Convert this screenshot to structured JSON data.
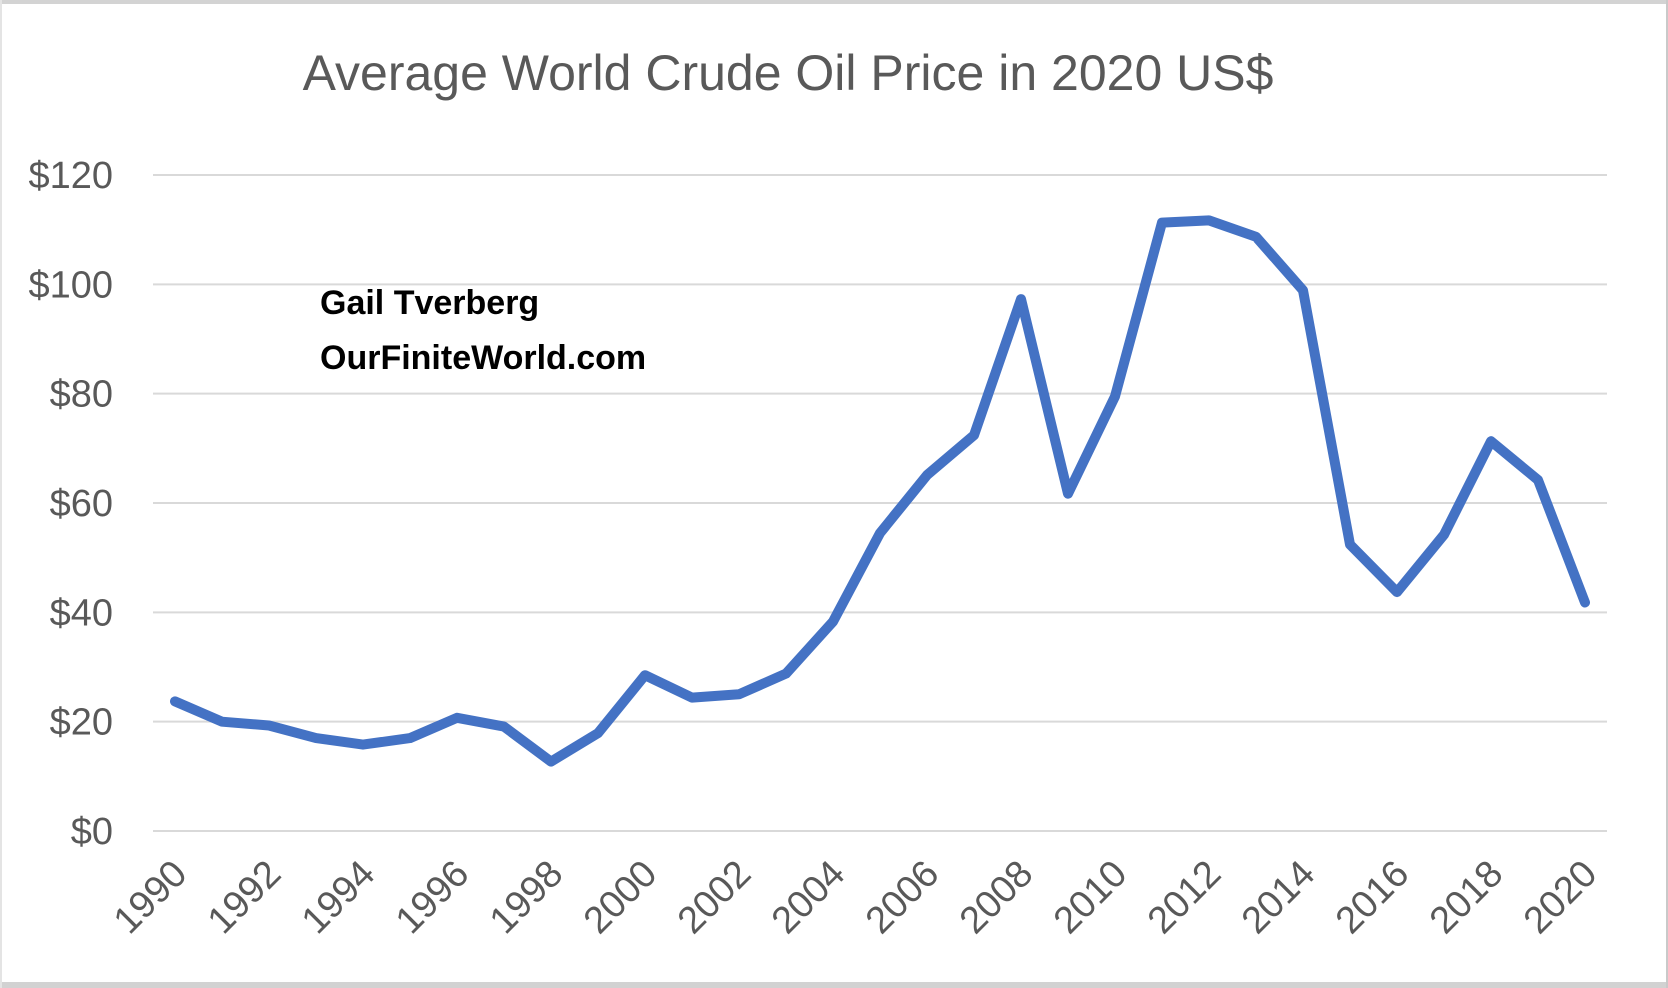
{
  "page": {
    "annotation": {
      "line1": "Gail Tverberg",
      "line2": "OurFiniteWorld.com"
    }
  },
  "chart_data": {
    "type": "line",
    "title": "Average World Crude Oil Price in 2020 US$",
    "x": [
      1990,
      1991,
      1992,
      1993,
      1994,
      1995,
      1996,
      1997,
      1998,
      1999,
      2000,
      2001,
      2002,
      2003,
      2004,
      2005,
      2006,
      2007,
      2008,
      2009,
      2010,
      2011,
      2012,
      2013,
      2014,
      2015,
      2016,
      2017,
      2018,
      2019,
      2020
    ],
    "values": [
      23.7,
      20.0,
      19.3,
      17.0,
      15.8,
      17.0,
      20.7,
      19.1,
      12.7,
      17.9,
      28.5,
      24.4,
      25.0,
      28.8,
      38.3,
      54.5,
      65.1,
      72.4,
      97.3,
      61.7,
      79.5,
      111.3,
      111.7,
      108.7,
      98.9,
      52.4,
      43.7,
      54.2,
      71.3,
      64.2,
      41.8
    ],
    "series_name": "Average world crude oil price",
    "xlabel": "",
    "ylabel": "",
    "ylim": [
      0,
      120
    ],
    "y_tick_values": [
      0,
      20,
      40,
      60,
      80,
      100,
      120
    ],
    "y_tick_labels": [
      "$0",
      "$20",
      "$40",
      "$60",
      "$80",
      "$100",
      "$120"
    ],
    "x_tick_labels": [
      "1990",
      "1992",
      "1994",
      "1996",
      "1998",
      "2000",
      "2002",
      "2004",
      "2006",
      "2008",
      "2010",
      "2012",
      "2014",
      "2016",
      "2018",
      "2020"
    ],
    "grid": "horizontal",
    "legend": "none",
    "line_color": "#4472C4",
    "label_color": "#595959",
    "annotation_lines": [
      "Gail Tverberg",
      "OurFiniteWorld.com"
    ]
  }
}
